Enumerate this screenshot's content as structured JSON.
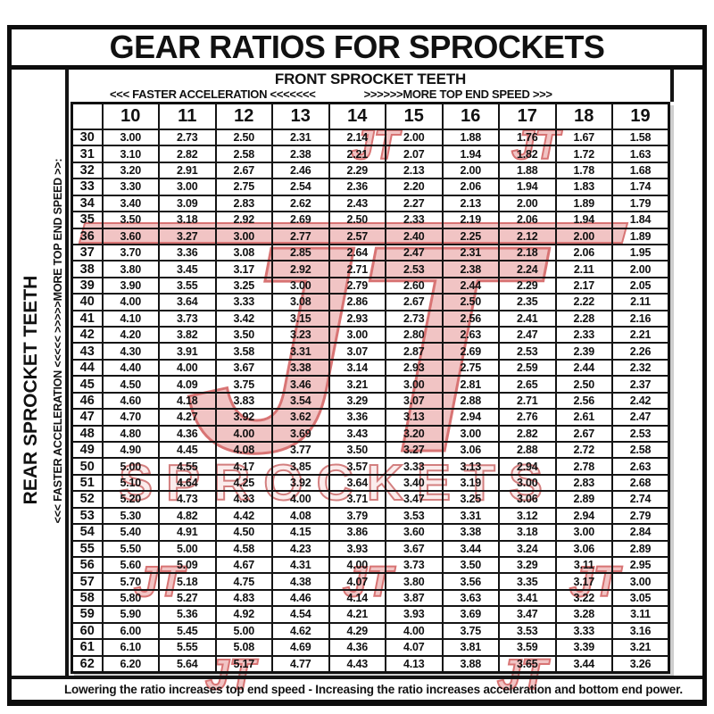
{
  "title": "GEAR RATIOS FOR SPROCKETS",
  "header": {
    "front_label": "FRONT SPROCKET TEETH",
    "faster": "<<< FASTER  ACCELERATION <<<<<<<",
    "top_speed": ">>>>>>MORE TOP END SPEED >>>"
  },
  "side": {
    "rear_label": "REAR SPROCKET TEETH",
    "direction": "<<< FASTER  ACCELERATION <<<<<      >>>>>MORE TOP END SPEED >>:"
  },
  "footer": {
    "note": "Lowering the ratio increases top end speed - Increasing the ratio increases acceleration and bottom end power."
  },
  "watermark": {
    "jt": "JT",
    "sprockets": "SPROCKETS",
    "fill": "#eeb6b6",
    "stroke": "#cf5252"
  },
  "chart_data": {
    "type": "table",
    "title": "GEAR RATIOS FOR SPROCKETS",
    "col_header": "FRONT SPROCKET TEETH",
    "row_header": "REAR SPROCKET TEETH",
    "front_teeth": [
      "10",
      "11",
      "12",
      "13",
      "14",
      "15",
      "16",
      "17",
      "18",
      "19"
    ],
    "rear_teeth": [
      "30",
      "31",
      "32",
      "33",
      "34",
      "35",
      "36",
      "37",
      "38",
      "39",
      "40",
      "41",
      "42",
      "43",
      "44",
      "45",
      "46",
      "47",
      "48",
      "49",
      "50",
      "51",
      "52",
      "53",
      "54",
      "55",
      "56",
      "57",
      "58",
      "59",
      "60",
      "61",
      "62"
    ],
    "ratios": [
      [
        "3.00",
        "2.73",
        "2.50",
        "2.31",
        "2.14",
        "2.00",
        "1.88",
        "1.76",
        "1.67",
        "1.58"
      ],
      [
        "3.10",
        "2.82",
        "2.58",
        "2.38",
        "2.21",
        "2.07",
        "1.94",
        "1.82",
        "1.72",
        "1.63"
      ],
      [
        "3.20",
        "2.91",
        "2.67",
        "2.46",
        "2.29",
        "2.13",
        "2.00",
        "1.88",
        "1.78",
        "1.68"
      ],
      [
        "3.30",
        "3.00",
        "2.75",
        "2.54",
        "2.36",
        "2.20",
        "2.06",
        "1.94",
        "1.83",
        "1.74"
      ],
      [
        "3.40",
        "3.09",
        "2.83",
        "2.62",
        "2.43",
        "2.27",
        "2.13",
        "2.00",
        "1.89",
        "1.79"
      ],
      [
        "3.50",
        "3.18",
        "2.92",
        "2.69",
        "2.50",
        "2.33",
        "2.19",
        "2.06",
        "1.94",
        "1.84"
      ],
      [
        "3.60",
        "3.27",
        "3.00",
        "2.77",
        "2.57",
        "2.40",
        "2.25",
        "2.12",
        "2.00",
        "1.89"
      ],
      [
        "3.70",
        "3.36",
        "3.08",
        "2.85",
        "2.64",
        "2.47",
        "2.31",
        "2.18",
        "2.06",
        "1.95"
      ],
      [
        "3.80",
        "3.45",
        "3.17",
        "2.92",
        "2.71",
        "2.53",
        "2.38",
        "2.24",
        "2.11",
        "2.00"
      ],
      [
        "3.90",
        "3.55",
        "3.25",
        "3.00",
        "2.79",
        "2.60",
        "2.44",
        "2.29",
        "2.17",
        "2.05"
      ],
      [
        "4.00",
        "3.64",
        "3.33",
        "3.08",
        "2.86",
        "2.67",
        "2.50",
        "2.35",
        "2.22",
        "2.11"
      ],
      [
        "4.10",
        "3.73",
        "3.42",
        "3.15",
        "2.93",
        "2.73",
        "2.56",
        "2.41",
        "2.28",
        "2.16"
      ],
      [
        "4.20",
        "3.82",
        "3.50",
        "3.23",
        "3.00",
        "2.80",
        "2.63",
        "2.47",
        "2.33",
        "2.21"
      ],
      [
        "4.30",
        "3.91",
        "3.58",
        "3.31",
        "3.07",
        "2.87",
        "2.69",
        "2.53",
        "2.39",
        "2.26"
      ],
      [
        "4.40",
        "4.00",
        "3.67",
        "3.38",
        "3.14",
        "2.93",
        "2.75",
        "2.59",
        "2.44",
        "2.32"
      ],
      [
        "4.50",
        "4.09",
        "3.75",
        "3.46",
        "3.21",
        "3.00",
        "2.81",
        "2.65",
        "2.50",
        "2.37"
      ],
      [
        "4.60",
        "4.18",
        "3.83",
        "3.54",
        "3.29",
        "3.07",
        "2.88",
        "2.71",
        "2.56",
        "2.42"
      ],
      [
        "4.70",
        "4.27",
        "3.92",
        "3.62",
        "3.36",
        "3.13",
        "2.94",
        "2.76",
        "2.61",
        "2.47"
      ],
      [
        "4.80",
        "4.36",
        "4.00",
        "3.69",
        "3.43",
        "3.20",
        "3.00",
        "2.82",
        "2.67",
        "2.53"
      ],
      [
        "4.90",
        "4.45",
        "4.08",
        "3.77",
        "3.50",
        "3.27",
        "3.06",
        "2.88",
        "2.72",
        "2.58"
      ],
      [
        "5.00",
        "4.55",
        "4.17",
        "3.85",
        "3.57",
        "3.33",
        "3.13",
        "2.94",
        "2.78",
        "2.63"
      ],
      [
        "5.10",
        "4.64",
        "4.25",
        "3.92",
        "3.64",
        "3.40",
        "3.19",
        "3.00",
        "2.83",
        "2.68"
      ],
      [
        "5.20",
        "4.73",
        "4.33",
        "4.00",
        "3.71",
        "3.47",
        "3.25",
        "3.06",
        "2.89",
        "2.74"
      ],
      [
        "5.30",
        "4.82",
        "4.42",
        "4.08",
        "3.79",
        "3.53",
        "3.31",
        "3.12",
        "2.94",
        "2.79"
      ],
      [
        "5.40",
        "4.91",
        "4.50",
        "4.15",
        "3.86",
        "3.60",
        "3.38",
        "3.18",
        "3.00",
        "2.84"
      ],
      [
        "5.50",
        "5.00",
        "4.58",
        "4.23",
        "3.93",
        "3.67",
        "3.44",
        "3.24",
        "3.06",
        "2.89"
      ],
      [
        "5.60",
        "5.09",
        "4.67",
        "4.31",
        "4.00",
        "3.73",
        "3.50",
        "3.29",
        "3.11",
        "2.95"
      ],
      [
        "5.70",
        "5.18",
        "4.75",
        "4.38",
        "4.07",
        "3.80",
        "3.56",
        "3.35",
        "3.17",
        "3.00"
      ],
      [
        "5.80",
        "5.27",
        "4.83",
        "4.46",
        "4.14",
        "3.87",
        "3.63",
        "3.41",
        "3.22",
        "3.05"
      ],
      [
        "5.90",
        "5.36",
        "4.92",
        "4.54",
        "4.21",
        "3.93",
        "3.69",
        "3.47",
        "3.28",
        "3.11"
      ],
      [
        "6.00",
        "5.45",
        "5.00",
        "4.62",
        "4.29",
        "4.00",
        "3.75",
        "3.53",
        "3.33",
        "3.16"
      ],
      [
        "6.10",
        "5.55",
        "5.08",
        "4.69",
        "4.36",
        "4.07",
        "3.81",
        "3.59",
        "3.39",
        "3.21"
      ],
      [
        "6.20",
        "5.64",
        "5.17",
        "4.77",
        "4.43",
        "4.13",
        "3.88",
        "3.65",
        "3.44",
        "3.26"
      ]
    ]
  }
}
